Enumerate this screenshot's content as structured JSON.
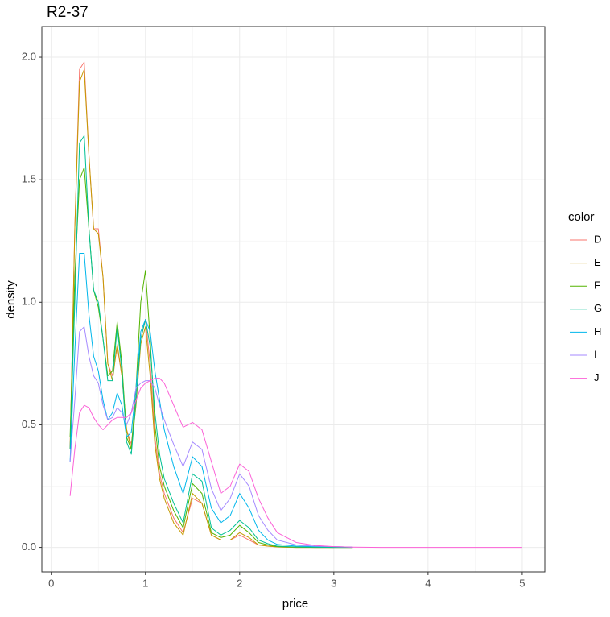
{
  "chart_data": {
    "type": "line",
    "title": "R2-37",
    "x_label": "price",
    "y_label": "density",
    "legend_title": "color",
    "x": [
      0.2,
      0.25,
      0.3,
      0.35,
      0.4,
      0.45,
      0.5,
      0.55,
      0.6,
      0.65,
      0.7,
      0.75,
      0.8,
      0.85,
      0.9,
      0.95,
      1.0,
      1.05,
      1.1,
      1.15,
      1.2,
      1.3,
      1.4,
      1.5,
      1.6,
      1.7,
      1.8,
      1.9,
      2.0,
      2.1,
      2.2,
      2.3,
      2.4,
      2.6,
      2.8,
      3.0,
      3.2,
      3.5,
      4.0,
      4.5,
      5.0
    ],
    "series": [
      {
        "name": "D",
        "color": "#F8766D",
        "values": [
          0.4,
          1.3,
          1.95,
          1.98,
          1.6,
          1.3,
          1.3,
          1.1,
          0.75,
          0.7,
          0.82,
          0.7,
          0.48,
          0.42,
          0.6,
          0.85,
          0.93,
          0.75,
          0.45,
          0.3,
          0.22,
          0.12,
          0.06,
          0.2,
          0.18,
          0.05,
          0.03,
          0.03,
          0.05,
          0.03,
          0.01,
          0.005,
          0.002,
          0,
          0,
          0,
          null,
          null,
          null,
          null,
          null
        ]
      },
      {
        "name": "E",
        "color": "#C49A00",
        "values": [
          0.4,
          1.3,
          1.9,
          1.95,
          1.6,
          1.3,
          1.28,
          1.1,
          0.75,
          0.68,
          0.83,
          0.7,
          0.48,
          0.4,
          0.58,
          0.83,
          0.9,
          0.7,
          0.42,
          0.28,
          0.2,
          0.1,
          0.05,
          0.22,
          0.18,
          0.05,
          0.03,
          0.03,
          0.06,
          0.04,
          0.01,
          0.005,
          0.002,
          0,
          0,
          0,
          0,
          null,
          null,
          null,
          null
        ]
      },
      {
        "name": "F",
        "color": "#53B400",
        "values": [
          0.45,
          1.1,
          1.5,
          1.55,
          1.3,
          1.05,
          0.98,
          0.85,
          0.7,
          0.72,
          0.92,
          0.75,
          0.45,
          0.4,
          0.65,
          1.0,
          1.13,
          0.85,
          0.5,
          0.33,
          0.25,
          0.15,
          0.08,
          0.26,
          0.22,
          0.06,
          0.04,
          0.05,
          0.09,
          0.06,
          0.02,
          0.01,
          0.003,
          0.001,
          0,
          0,
          0,
          null,
          null,
          null,
          null
        ]
      },
      {
        "name": "G",
        "color": "#00C094",
        "values": [
          0.4,
          1.0,
          1.65,
          1.68,
          1.3,
          1.05,
          1.0,
          0.85,
          0.68,
          0.68,
          0.9,
          0.72,
          0.43,
          0.38,
          0.6,
          0.85,
          0.93,
          0.82,
          0.55,
          0.38,
          0.28,
          0.18,
          0.1,
          0.3,
          0.27,
          0.08,
          0.05,
          0.07,
          0.11,
          0.08,
          0.03,
          0.015,
          0.005,
          0.002,
          0.001,
          0,
          0,
          null,
          null,
          null,
          null
        ]
      },
      {
        "name": "H",
        "color": "#00B6EB",
        "values": [
          0.35,
          0.8,
          1.2,
          1.2,
          0.95,
          0.78,
          0.72,
          0.6,
          0.52,
          0.55,
          0.63,
          0.58,
          0.45,
          0.47,
          0.65,
          0.88,
          0.93,
          0.88,
          0.72,
          0.6,
          0.48,
          0.33,
          0.22,
          0.37,
          0.33,
          0.16,
          0.1,
          0.13,
          0.22,
          0.16,
          0.07,
          0.03,
          0.012,
          0.005,
          0.003,
          0.003,
          0.001,
          null,
          null,
          null,
          null
        ]
      },
      {
        "name": "I",
        "color": "#A58AFF",
        "values": [
          0.35,
          0.6,
          0.88,
          0.9,
          0.78,
          0.7,
          0.67,
          0.58,
          0.52,
          0.53,
          0.57,
          0.55,
          0.5,
          0.55,
          0.65,
          0.67,
          0.68,
          0.68,
          0.65,
          0.58,
          0.52,
          0.42,
          0.33,
          0.43,
          0.4,
          0.24,
          0.15,
          0.2,
          0.3,
          0.25,
          0.13,
          0.07,
          0.03,
          0.01,
          0.005,
          0.003,
          0.001,
          null,
          null,
          null,
          null
        ]
      },
      {
        "name": "J",
        "color": "#FB61D7",
        "values": [
          0.21,
          0.4,
          0.55,
          0.58,
          0.57,
          0.53,
          0.5,
          0.48,
          0.5,
          0.52,
          0.53,
          0.53,
          0.53,
          0.55,
          0.6,
          0.65,
          0.67,
          0.68,
          0.69,
          0.69,
          0.67,
          0.58,
          0.49,
          0.51,
          0.48,
          0.35,
          0.22,
          0.25,
          0.34,
          0.31,
          0.2,
          0.12,
          0.06,
          0.02,
          0.008,
          0.003,
          0.001,
          0,
          0,
          0,
          0
        ]
      }
    ],
    "xlim": [
      -0.1,
      5.24
    ],
    "ylim": [
      -0.1,
      2.125
    ],
    "xticks": [
      0,
      1,
      2,
      3,
      4,
      5
    ],
    "yticks": [
      {
        "value": 0,
        "label": "0.0"
      },
      {
        "value": 0.5,
        "label": "0.5"
      },
      {
        "value": 1,
        "label": "1.0"
      },
      {
        "value": 1.5,
        "label": "1.5"
      },
      {
        "value": 2,
        "label": "2.0"
      }
    ],
    "grid": true,
    "legend": "right"
  }
}
